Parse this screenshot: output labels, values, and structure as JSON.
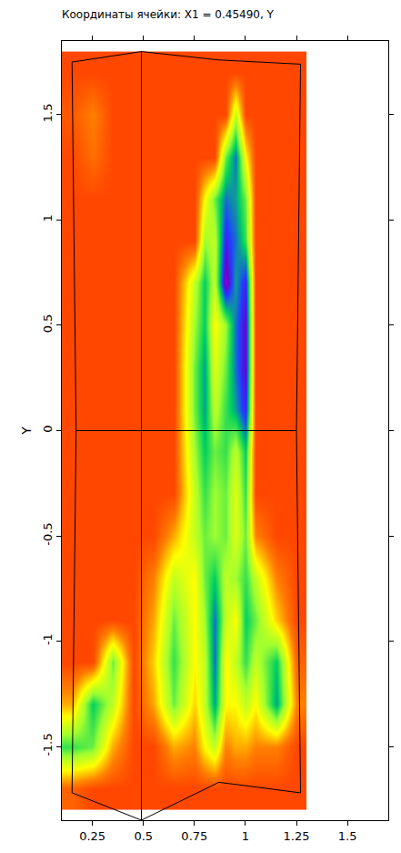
{
  "chart_data": {
    "type": "heatmap",
    "title": "Координаты ячейки: X1 = 0.45490, Y",
    "y_label": "Y",
    "x": [
      0.15,
      0.25,
      0.35,
      0.45,
      0.55,
      0.65,
      0.75,
      0.8,
      0.85,
      0.9,
      0.95,
      1.0,
      1.05,
      1.15,
      1.25
    ],
    "y": [
      -1.7,
      -1.5,
      -1.3,
      -1.1,
      -0.9,
      -0.7,
      -0.5,
      -0.3,
      -0.1,
      0.1,
      0.3,
      0.5,
      0.7,
      0.9,
      1.1,
      1.3,
      1.5,
      1.7
    ],
    "z": [
      [
        0.9,
        0.95,
        0.95,
        0.95,
        0.95,
        0.95,
        0.95,
        0.95,
        0.95,
        0.95,
        0.95,
        0.95,
        0.95,
        0.95,
        0.95
      ],
      [
        0.45,
        0.5,
        0.8,
        0.95,
        0.95,
        0.8,
        0.85,
        0.7,
        0.6,
        0.85,
        0.8,
        0.8,
        0.85,
        0.85,
        0.95
      ],
      [
        0.8,
        0.4,
        0.6,
        0.95,
        0.8,
        0.5,
        0.75,
        0.6,
        0.35,
        0.7,
        0.7,
        0.6,
        0.7,
        0.35,
        0.85
      ],
      [
        0.95,
        0.95,
        0.5,
        0.95,
        0.75,
        0.45,
        0.7,
        0.6,
        0.3,
        0.7,
        0.6,
        0.45,
        0.6,
        0.4,
        0.9
      ],
      [
        0.95,
        0.95,
        0.95,
        0.95,
        0.8,
        0.5,
        0.7,
        0.55,
        0.3,
        0.6,
        0.7,
        0.4,
        0.5,
        0.75,
        0.95
      ],
      [
        0.95,
        0.95,
        0.95,
        0.95,
        0.85,
        0.6,
        0.7,
        0.5,
        0.4,
        0.6,
        0.55,
        0.45,
        0.6,
        0.85,
        0.95
      ],
      [
        0.95,
        0.95,
        0.95,
        0.95,
        0.95,
        0.8,
        0.6,
        0.5,
        0.55,
        0.5,
        0.65,
        0.5,
        0.85,
        0.95,
        0.95
      ],
      [
        0.95,
        0.95,
        0.95,
        0.95,
        0.95,
        0.95,
        0.6,
        0.45,
        0.55,
        0.5,
        0.65,
        0.45,
        0.95,
        0.95,
        0.95
      ],
      [
        0.95,
        0.95,
        0.95,
        0.95,
        0.95,
        0.95,
        0.55,
        0.4,
        0.5,
        0.45,
        0.6,
        0.4,
        0.95,
        0.95,
        0.95
      ],
      [
        0.95,
        0.95,
        0.95,
        0.95,
        0.95,
        0.95,
        0.5,
        0.35,
        0.6,
        0.45,
        0.35,
        0.2,
        0.95,
        0.95,
        0.95
      ],
      [
        0.95,
        0.95,
        0.95,
        0.95,
        0.95,
        0.95,
        0.5,
        0.35,
        0.65,
        0.5,
        0.3,
        0.15,
        0.95,
        0.95,
        0.95
      ],
      [
        0.95,
        0.95,
        0.95,
        0.95,
        0.95,
        0.95,
        0.55,
        0.4,
        0.7,
        0.55,
        0.3,
        0.15,
        0.95,
        0.95,
        0.95
      ],
      [
        0.95,
        0.95,
        0.95,
        0.95,
        0.95,
        0.95,
        0.6,
        0.4,
        0.6,
        0.1,
        0.35,
        0.2,
        0.95,
        0.95,
        0.95
      ],
      [
        0.95,
        0.95,
        0.95,
        0.95,
        0.95,
        0.95,
        0.95,
        0.55,
        0.6,
        0.2,
        0.3,
        0.45,
        0.95,
        0.95,
        0.95
      ],
      [
        0.95,
        0.95,
        0.95,
        0.95,
        0.95,
        0.95,
        0.95,
        0.7,
        0.5,
        0.3,
        0.35,
        0.5,
        0.95,
        0.95,
        0.95
      ],
      [
        0.95,
        0.88,
        0.95,
        0.95,
        0.95,
        0.95,
        0.95,
        0.95,
        0.95,
        0.5,
        0.3,
        0.7,
        0.95,
        0.95,
        0.95
      ],
      [
        0.92,
        0.85,
        0.95,
        0.95,
        0.95,
        0.95,
        0.95,
        0.95,
        0.95,
        0.95,
        0.6,
        0.95,
        0.95,
        0.95,
        0.95
      ],
      [
        0.95,
        0.95,
        0.95,
        0.95,
        0.95,
        0.95,
        0.95,
        0.95,
        0.95,
        0.95,
        0.95,
        0.95,
        0.95,
        0.95,
        0.95
      ]
    ],
    "zlim": [
      0,
      1
    ],
    "mesh": {
      "x": [
        0.15,
        0.49,
        0.87,
        1.27,
        1.25,
        1.27,
        0.87,
        0.49,
        0.15,
        0.17,
        0.15,
        null,
        0.49,
        0.49,
        null,
        0.17,
        1.25
      ],
      "y": [
        1.75,
        1.8,
        1.76,
        1.74,
        0,
        -1.72,
        -1.67,
        -1.85,
        -1.72,
        0,
        1.75,
        null,
        1.8,
        -1.85,
        null,
        0,
        0
      ]
    },
    "xlim": [
      0.1,
      1.7
    ],
    "ylim": [
      -1.85,
      1.85
    ],
    "xticks": [
      0.25,
      0.5,
      0.75,
      1,
      1.25,
      1.5
    ],
    "yticks": [
      -1.5,
      -1,
      -0.5,
      0,
      0.5,
      1,
      1.5
    ],
    "grid": false
  }
}
